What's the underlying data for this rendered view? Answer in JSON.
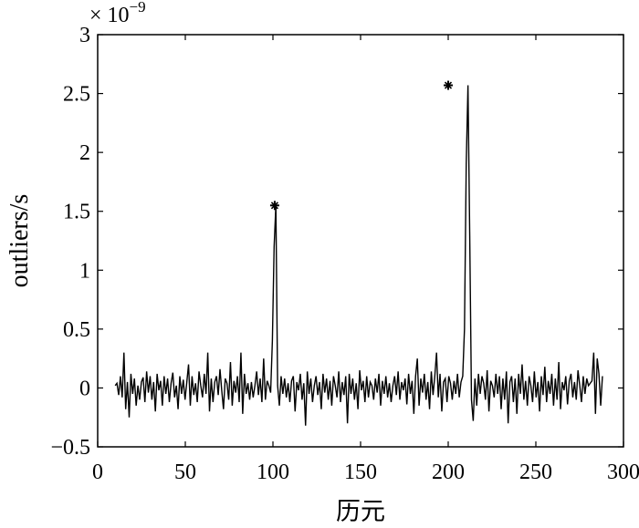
{
  "chart_data": {
    "type": "line",
    "title": "",
    "xlabel": "历元",
    "ylabel": "outliers/s",
    "y_exponent_label": "× 10^-9",
    "y_exponent_base": "× 10",
    "y_exponent_power": "−9",
    "xlim": [
      0,
      300
    ],
    "ylim": [
      -0.5,
      3
    ],
    "x_ticks": [
      0,
      50,
      100,
      150,
      200,
      250,
      300
    ],
    "x_tick_labels": [
      "0",
      "50",
      "100",
      "150",
      "200",
      "250",
      "300"
    ],
    "y_ticks": [
      -0.5,
      0,
      0.5,
      1,
      1.5,
      2,
      2.5,
      3
    ],
    "y_tick_labels": [
      "−0.5",
      "0",
      "0.5",
      "1",
      "1.5",
      "2",
      "2.5",
      "3"
    ],
    "grid": false,
    "line_color": "#000000",
    "series": [
      {
        "x_start": 10,
        "x_end": 288,
        "values": [
          0.02,
          0.04,
          -0.06,
          0.1,
          -0.08,
          0.3,
          -0.18,
          0.05,
          -0.25,
          0.12,
          -0.05,
          0.08,
          -0.15,
          0.02,
          -0.1,
          0.05,
          0.09,
          -0.12,
          0.14,
          -0.04,
          0.1,
          -0.1,
          0.05,
          -0.2,
          0.12,
          -0.02,
          0.06,
          -0.15,
          0.1,
          -0.05,
          0.08,
          -0.12,
          0.04,
          0.13,
          -0.08,
          0.02,
          -0.18,
          0.1,
          -0.05,
          0.07,
          -0.1,
          0.05,
          0.2,
          -0.15,
          0.1,
          -0.06,
          0.04,
          -0.12,
          0.14,
          0.02,
          -0.08,
          0.12,
          -0.05,
          0.3,
          -0.2,
          0.08,
          -0.12,
          0.05,
          0.1,
          -0.06,
          0.16,
          -0.02,
          -0.18,
          0.08,
          0.04,
          -0.1,
          0.22,
          -0.15,
          0.06,
          -0.04,
          0.1,
          -0.12,
          0.3,
          -0.22,
          0.12,
          -0.05,
          0.04,
          -0.1,
          0.05,
          -0.08,
          0.02,
          0.14,
          -0.06,
          0.08,
          -0.12,
          0.25,
          -0.1,
          0.06,
          0.02,
          -0.04,
          0.4,
          1.2,
          1.55,
          0.02,
          -0.15,
          0.1,
          -0.05,
          0.08,
          -0.08,
          0.04,
          -0.12,
          0.06,
          0.1,
          -0.2,
          0.05,
          -0.02,
          0.12,
          -0.1,
          0.04,
          -0.32,
          0.14,
          -0.05,
          0.08,
          -0.12,
          0.02,
          0.1,
          -0.06,
          0.05,
          -0.18,
          0.12,
          -0.04,
          0.08,
          -0.1,
          0.06,
          -0.15,
          0.1,
          0.02,
          -0.08,
          0.14,
          -0.12,
          0.05,
          -0.06,
          0.1,
          -0.3,
          0.12,
          -0.05,
          0.08,
          -0.1,
          0.04,
          -0.18,
          0.15,
          -0.02,
          0.06,
          -0.12,
          0.1,
          -0.08,
          0.05,
          0.02,
          -0.1,
          0.08,
          -0.04,
          0.12,
          -0.15,
          0.06,
          -0.05,
          0.1,
          -0.08,
          0.04,
          -0.12,
          0.02,
          0.1,
          -0.06,
          0.14,
          -0.1,
          0.05,
          -0.02,
          0.08,
          -0.14,
          0.12,
          -0.05,
          0.06,
          -0.22,
          0.1,
          0.25,
          -0.15,
          0.08,
          -0.04,
          0.12,
          -0.1,
          0.05,
          -0.18,
          0.14,
          -0.06,
          0.1,
          0.3,
          -0.08,
          0.12,
          -0.2,
          0.05,
          0.08,
          -0.12,
          0.1,
          0.04,
          -0.1,
          0.06,
          -0.05,
          0.12,
          -0.08,
          0.05,
          0.1,
          0.5,
          1.9,
          2.57,
          1.3,
          -0.1,
          -0.28,
          0.08,
          -0.15,
          0.12,
          -0.05,
          0.1,
          0.04,
          -0.1,
          0.15,
          -0.2,
          0.06,
          0.02,
          -0.08,
          0.12,
          -0.05,
          0.1,
          -0.18,
          0.08,
          -0.1,
          0.14,
          -0.3,
          0.05,
          0.1,
          -0.12,
          0.08,
          -0.22,
          0.12,
          -0.05,
          0.2,
          -0.1,
          0.06,
          -0.15,
          0.1,
          0.02,
          -0.12,
          0.14,
          -0.08,
          0.05,
          -0.2,
          0.1,
          -0.06,
          0.18,
          -0.12,
          0.06,
          -0.05,
          0.12,
          -0.15,
          0.08,
          -0.1,
          0.22,
          -0.18,
          0.05,
          -0.02,
          0.1,
          -0.14,
          0.06,
          0.12,
          -0.08,
          0.05,
          -0.1,
          0.15,
          0.02,
          -0.12,
          0.1,
          -0.05,
          0.08,
          0.02,
          0.04,
          0.06,
          0.3,
          -0.22,
          0.25,
          0.12,
          -0.15,
          0.1
        ]
      }
    ],
    "markers": [
      {
        "x": 101,
        "y": 1.55,
        "symbol": "*"
      },
      {
        "x": 200,
        "y": 2.57,
        "symbol": "*"
      }
    ]
  }
}
